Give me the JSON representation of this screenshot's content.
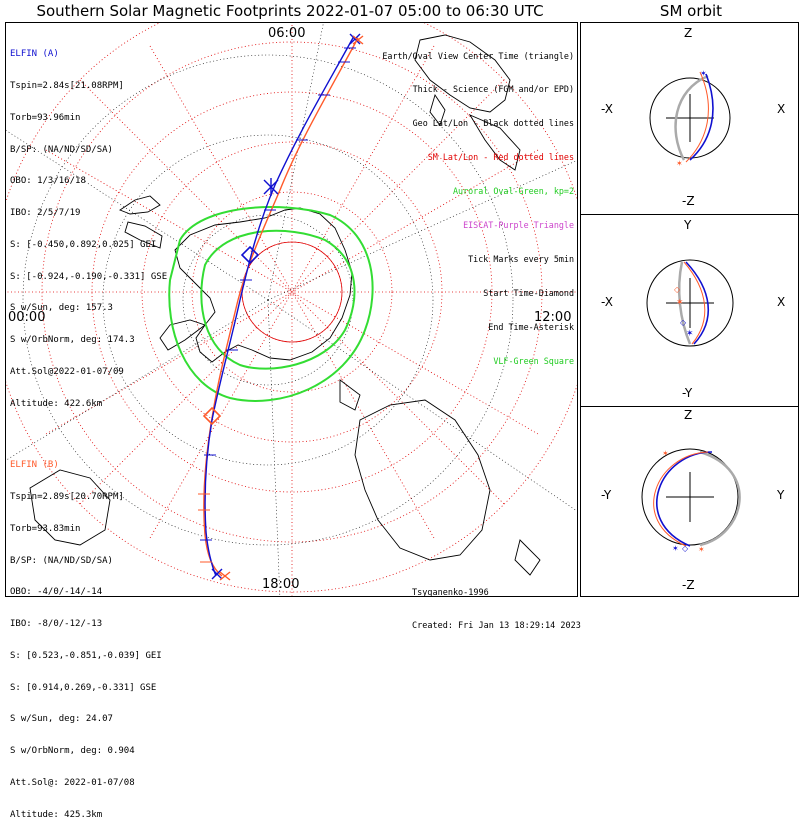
{
  "title": "Southern Solar Magnetic Footprints 2022-01-07 05:00 to 06:30 UTC",
  "orbit_title": "SM orbit",
  "time_labels": {
    "top": "06:00",
    "left": "00:00",
    "right": "12:00",
    "bottom": "18:00"
  },
  "elfin_a": {
    "name": "ELFIN (A)",
    "color": "#1010d0",
    "lines": [
      "Tspin=2.84s[21.08RPM]",
      "Torb=93.96min",
      "B/SP: (NA/ND/SD/SA)",
      "OBO: 1/3/16/18",
      "IBO: 2/5/7/19",
      "S: [-0.450,0.892,0.025] GEI",
      "S: [-0.924,-0.190,-0.331] GSE",
      "S w/Sun, deg: 157.3",
      "S w/OrbNorm, deg: 174.3",
      "Att.Sol@2022-01-07/09",
      "Altitude: 422.6km"
    ]
  },
  "elfin_b": {
    "name": "ELFIN (B)",
    "color": "#ff5a2a",
    "lines": [
      "Tspin=2.89s[20.70RPM]",
      "Torb=93.83min",
      "B/SP: (NA/ND/SD/SA)",
      "OBO: -4/0/-14/-14",
      "IBO: -8/0/-12/-13",
      "S: [0.523,-0.851,-0.039] GEI",
      "S: [0.914,0.269,-0.331] GSE",
      "S w/Sun, deg: 24.07",
      "S w/OrbNorm, deg: 0.904",
      "Att.Sol@: 2022-01-07/08",
      "Altitude: 425.3km"
    ]
  },
  "legend": [
    {
      "text": "Earth/Oval View Center Time (triangle)",
      "color": "#000000"
    },
    {
      "text": "Thick - Science (FGM and/or EPD)",
      "color": "#000000"
    },
    {
      "text": "Geo Lat/Lon - Black dotted lines",
      "color": "#000000"
    },
    {
      "text": "SM Lat/Lon - Red dotted lines",
      "color": "#e00000"
    },
    {
      "text": "Auroral Oval-Green, kp=2",
      "color": "#22cc22"
    },
    {
      "text": "EISCAT-Purple Triangle",
      "color": "#cc44cc"
    },
    {
      "text": "Tick Marks every 5min",
      "color": "#000000"
    },
    {
      "text": "Start Time-Diamond",
      "color": "#000000"
    },
    {
      "text": "End Time-Asterisk",
      "color": "#000000"
    },
    {
      "text": "VLF-Green Square",
      "color": "#22cc22"
    }
  ],
  "credits": {
    "author": "Tsyganenko-1996",
    "created": "Created: Fri Jan 13 18:29:14 2023"
  },
  "orbit_panels": [
    {
      "top": "Z",
      "bottom": "-Z",
      "left": "-X",
      "right": "X"
    },
    {
      "top": "Y",
      "bottom": "-Y",
      "left": "-X",
      "right": "X"
    },
    {
      "top": "Z",
      "bottom": "-Z",
      "left": "-Y",
      "right": "Y"
    }
  ],
  "colors": {
    "sm_grid": "#e00000",
    "oval": "#22cc22",
    "orbit_gray": "#aaaaaa"
  }
}
